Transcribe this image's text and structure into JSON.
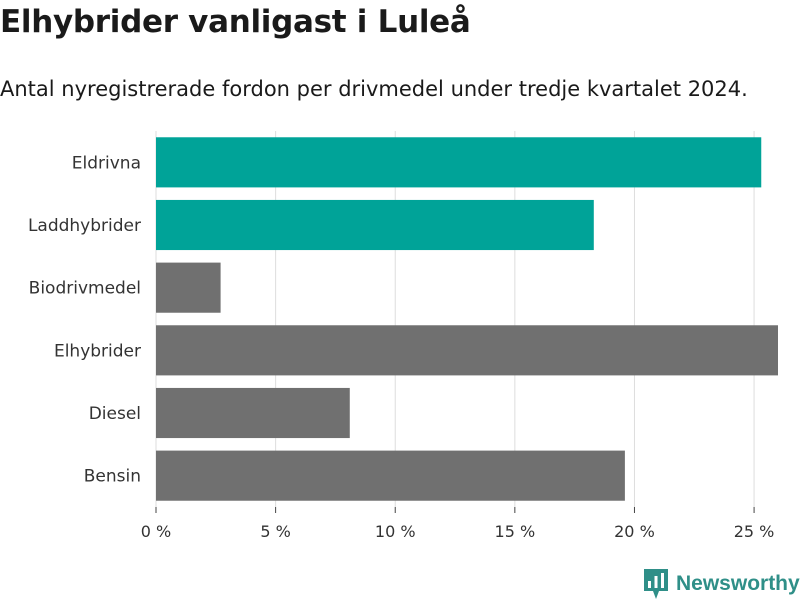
{
  "chart_data": {
    "type": "bar",
    "orientation": "horizontal",
    "title": "Elhybrider vanligast i Luleå",
    "subtitle": "Antal nyregistrerade fordon per drivmedel under tredje kvartalet 2024.",
    "categories": [
      "Eldrivna",
      "Laddhybrider",
      "Biodrivmedel",
      "Elhybrider",
      "Diesel",
      "Bensin"
    ],
    "values": [
      25.3,
      18.3,
      2.7,
      26.0,
      8.1,
      19.6
    ],
    "colors": [
      "#00a398",
      "#00a398",
      "#707070",
      "#707070",
      "#707070",
      "#707070"
    ],
    "x_ticks": [
      0,
      5,
      10,
      15,
      20,
      25
    ],
    "x_tick_labels": [
      "0 %",
      "5 %",
      "10 %",
      "15 %",
      "20 %",
      "25 %"
    ],
    "xlim": [
      0,
      26.0
    ],
    "grid": true,
    "xlabel": "",
    "ylabel": ""
  },
  "brand": {
    "name": "Newsworthy",
    "icon": "newsworthy-logo-icon",
    "color": "#2f8f88"
  }
}
